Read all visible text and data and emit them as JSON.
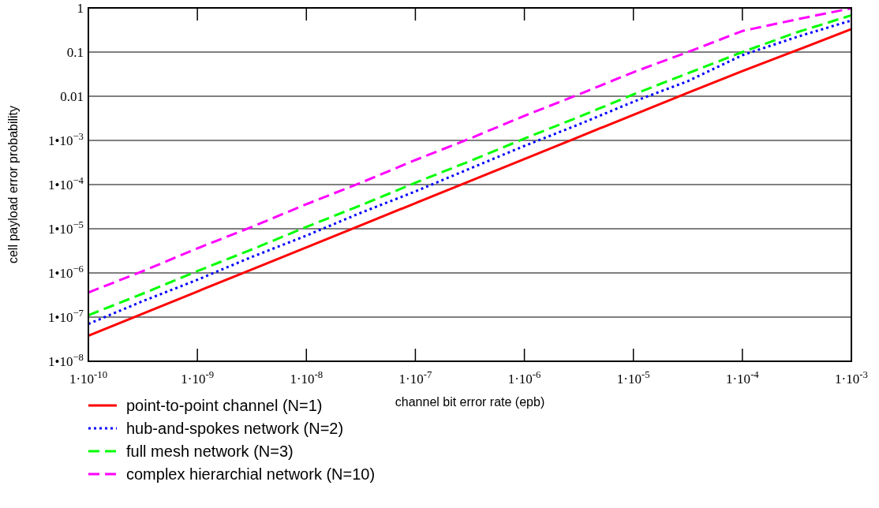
{
  "chart_data": {
    "type": "line",
    "xlabel": "channel bit error rate (epb)",
    "ylabel": "cell payload error probability",
    "x": [
      1e-10,
      3.16e-10,
      1e-09,
      3.16e-09,
      1e-08,
      3.16e-08,
      1e-07,
      3.16e-07,
      1e-06,
      3.16e-06,
      1e-05,
      3.16e-05,
      0.0001,
      0.000316,
      0.001
    ],
    "series": [
      {
        "name": "point-to-point channel (N=1)",
        "color": "#ff0000",
        "line_style": "solid",
        "values": [
          3.8e-08,
          1.2e-07,
          3.8e-07,
          1.2e-06,
          3.8e-06,
          1.2e-05,
          3.8e-05,
          0.00012,
          0.00038,
          0.0012,
          0.0038,
          0.012,
          0.037,
          0.11,
          0.33
        ]
      },
      {
        "name": "hub-and-spokes network (N=2)",
        "color": "#0000ff",
        "line_style": "dotted",
        "values": [
          7e-08,
          2.3e-07,
          7e-07,
          2.3e-06,
          7e-06,
          2.3e-05,
          7e-05,
          0.00023,
          0.00075,
          0.0023,
          0.0075,
          0.022,
          0.085,
          0.22,
          0.52
        ]
      },
      {
        "name": "full mesh network (N=3)",
        "color": "#00ff00",
        "line_style": "dashed",
        "values": [
          1.1e-07,
          3.4e-07,
          1.1e-06,
          3.4e-06,
          1.1e-05,
          3.4e-05,
          0.00011,
          0.00034,
          0.0011,
          0.0034,
          0.011,
          0.033,
          0.1,
          0.28,
          0.68
        ]
      },
      {
        "name": "complex hierarchial network (N=10)",
        "color": "#ff00ff",
        "line_style": "dashed",
        "values": [
          3.6e-07,
          1.1e-06,
          3.6e-06,
          1.1e-05,
          3.6e-05,
          0.00011,
          0.00036,
          0.0011,
          0.0036,
          0.011,
          0.035,
          0.1,
          0.3,
          0.55,
          0.98
        ]
      }
    ],
    "log": "xy",
    "xlim": [
      1e-10,
      0.001
    ],
    "ylim": [
      1e-08,
      1
    ],
    "xticks": [
      {
        "value": 1e-10,
        "label": "1·10$^{-10}$"
      },
      {
        "value": 1e-09,
        "label": "1·10$^{-9}$"
      },
      {
        "value": 1e-08,
        "label": "1·10$^{-8}$"
      },
      {
        "value": 1e-07,
        "label": "1·10$^{-7}$"
      },
      {
        "value": 1e-06,
        "label": "1·10$^{-6}$"
      },
      {
        "value": 1e-05,
        "label": "1·10$^{-5}$"
      },
      {
        "value": 0.0001,
        "label": "1·10$^{-4}$"
      },
      {
        "value": 0.001,
        "label": "1·10$^{-3}$"
      }
    ],
    "yticks": [
      {
        "value": 1e-08,
        "label": "1•10$^{−8}$"
      },
      {
        "value": 1e-07,
        "label": "1•10$^{−7}$"
      },
      {
        "value": 1e-06,
        "label": "1•10$^{−6}$"
      },
      {
        "value": 1e-05,
        "label": "1•10$^{−5}$"
      },
      {
        "value": 0.0001,
        "label": "1•10$^{−4}$"
      },
      {
        "value": 0.001,
        "label": "1•10$^{−3}$"
      },
      0.01,
      0.1,
      1
    ],
    "grid": "y",
    "legend": "bottom left"
  }
}
